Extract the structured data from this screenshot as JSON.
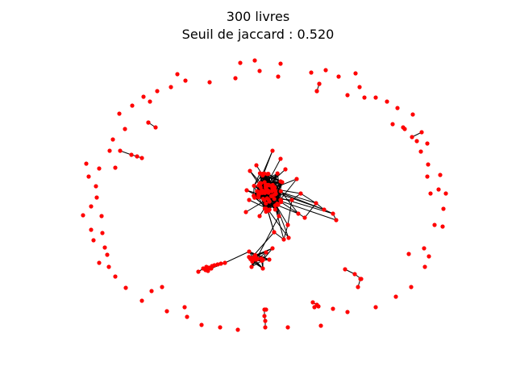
{
  "title": "300 livres",
  "subtitle": "Seuil de jaccard : 0.520",
  "colors": {
    "node": "#ff0000",
    "edge": "#000000",
    "background": "#ffffff"
  }
}
